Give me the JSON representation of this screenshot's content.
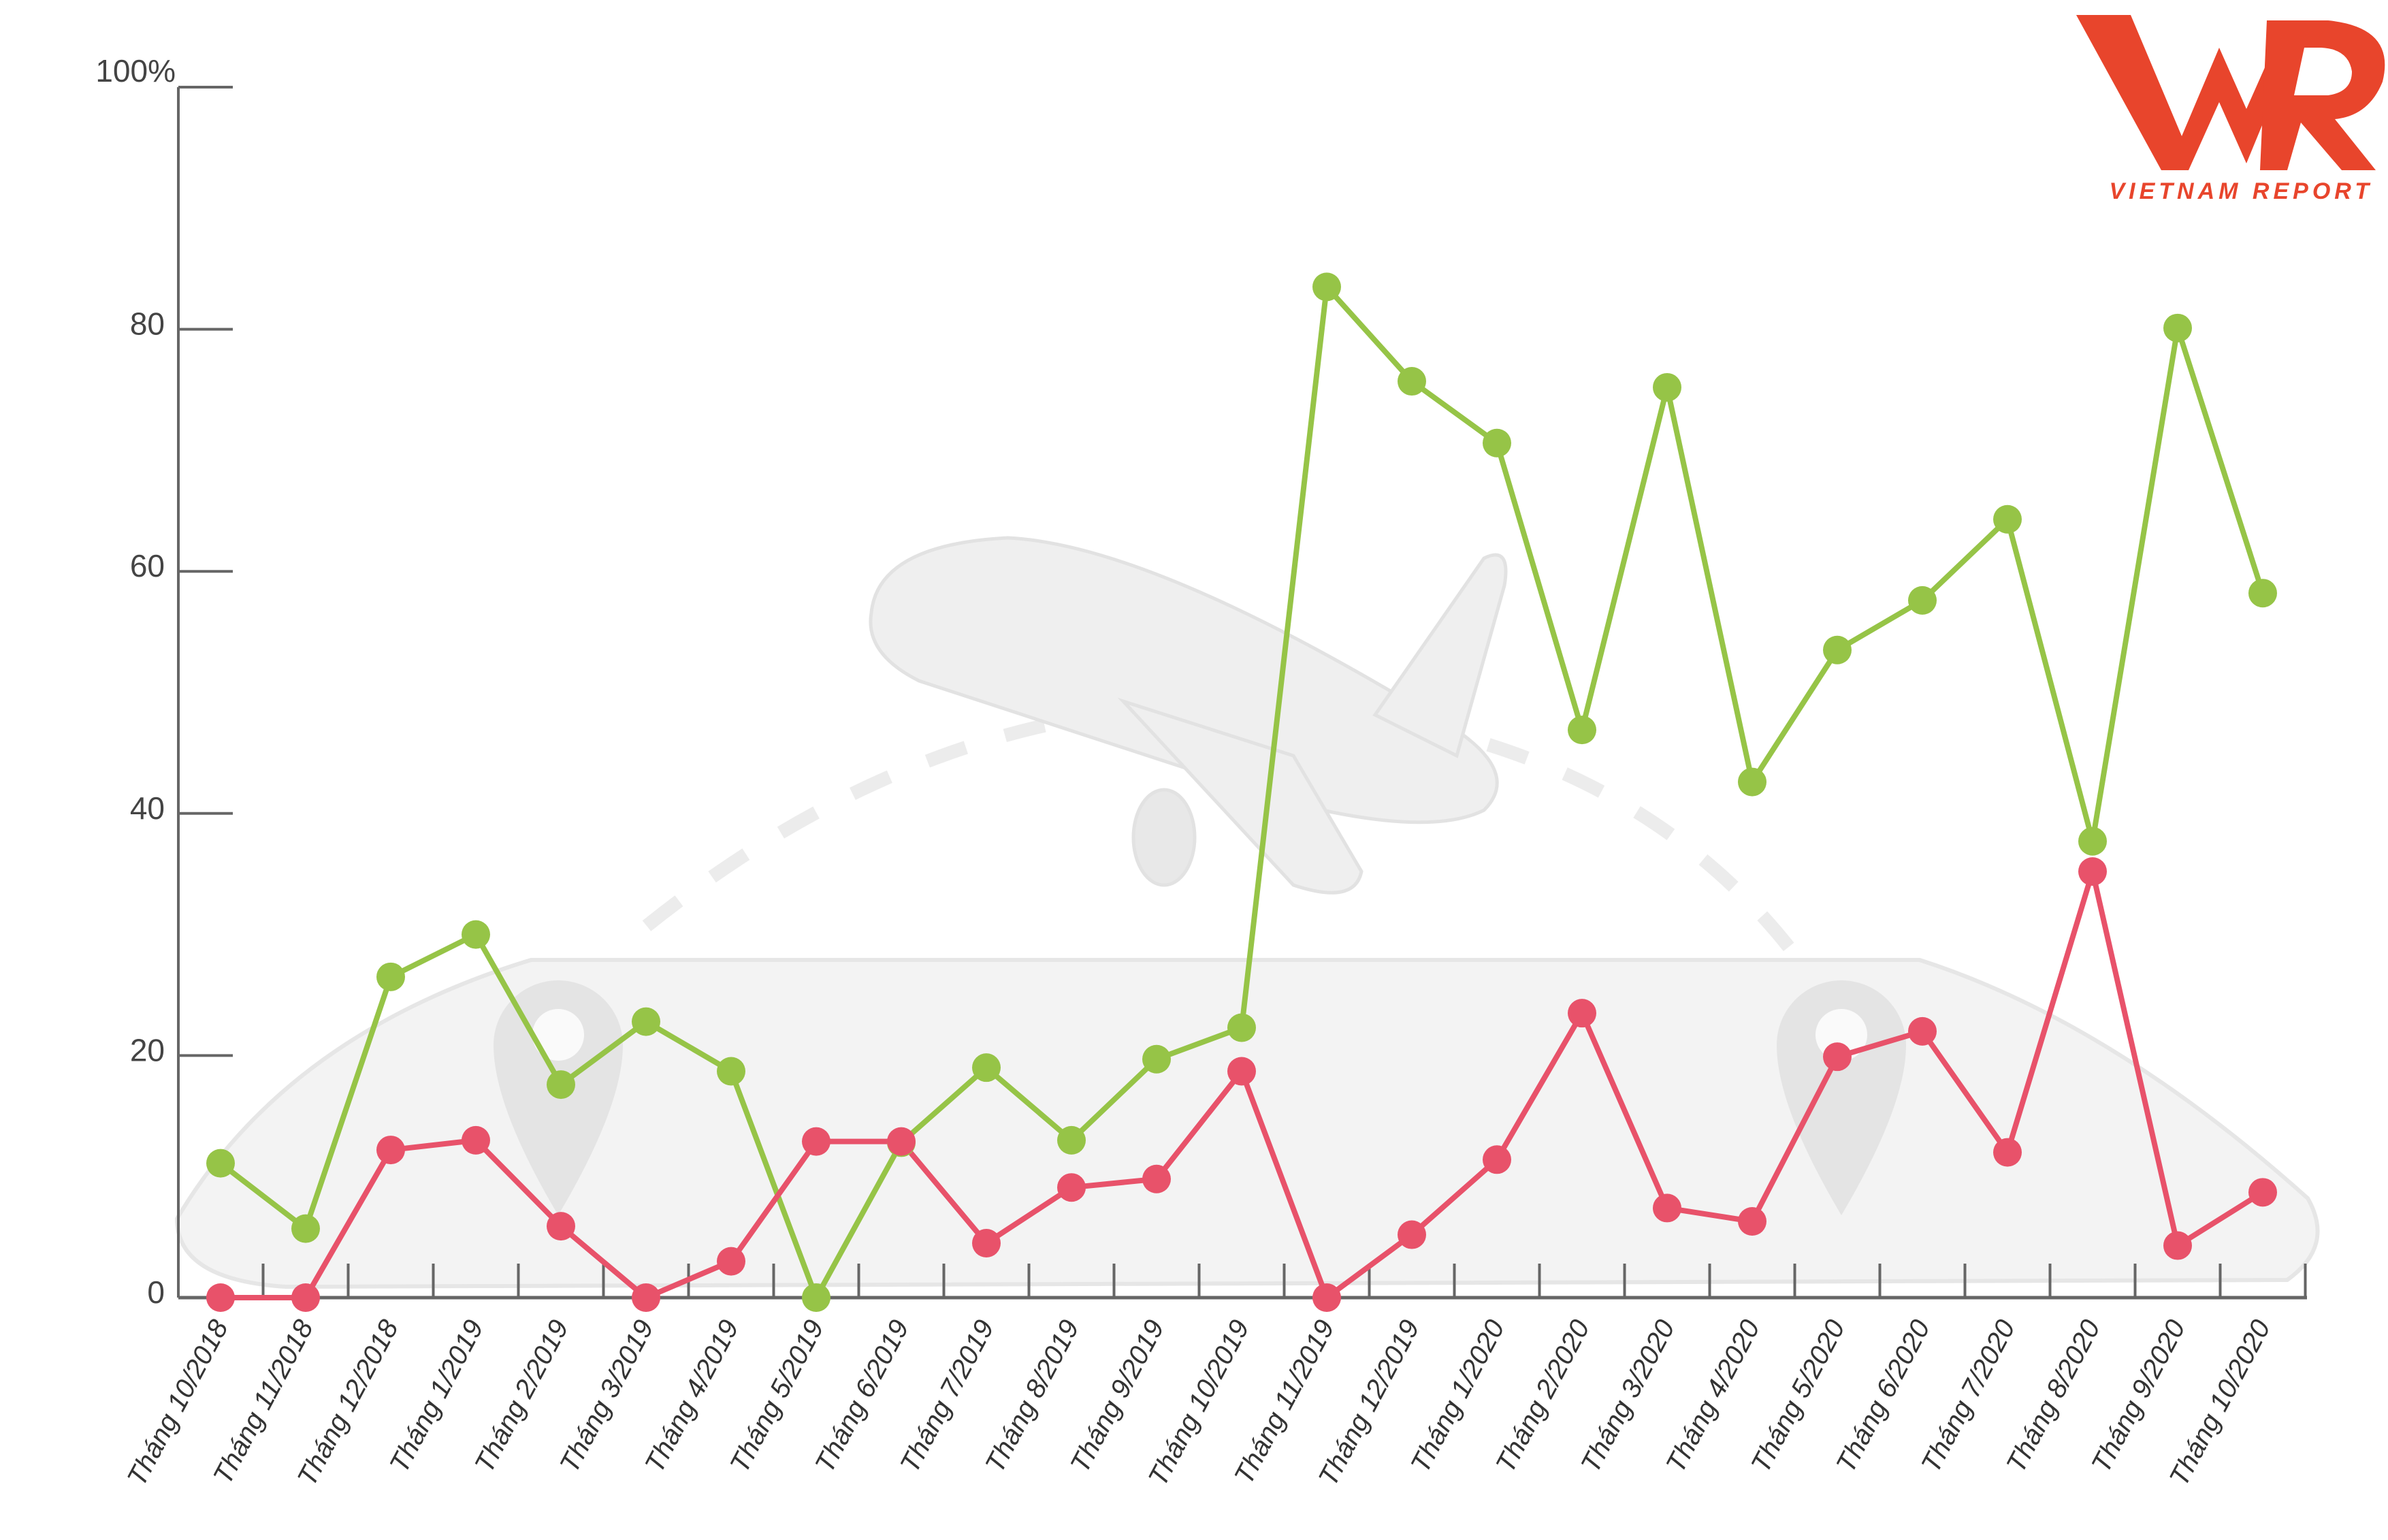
{
  "logo": {
    "brand": "VNR",
    "subtitle": "VIETNAM REPORT",
    "color": "#e8452c"
  },
  "chart_data": {
    "type": "line",
    "title": "",
    "xlabel": "",
    "ylabel": "",
    "ylim": [
      0,
      100
    ],
    "yticks": [
      0,
      20,
      40,
      60,
      80,
      100
    ],
    "ytick_labels": [
      "0",
      "20",
      "40",
      "60",
      "80",
      "100%"
    ],
    "grid": false,
    "categories": [
      "Tháng 10/2018",
      "Tháng 11/2018",
      "Tháng 12/2018",
      "Tháng 1/2019",
      "Tháng 2/2019",
      "Tháng 3/2019",
      "Tháng 4/2019",
      "Tháng 5/2019",
      "Tháng 6/2019",
      "Tháng 7/2019",
      "Tháng 8/2019",
      "Tháng 9/2019",
      "Tháng 10/2019",
      "Tháng 11/2019",
      "Tháng 12/2019",
      "Tháng 1/2020",
      "Tháng 2/2020",
      "Tháng 3/2020",
      "Tháng 4/2020",
      "Tháng 5/2020",
      "Tháng 6/2020",
      "Tháng 7/2020",
      "Tháng 8/2020",
      "Tháng 9/2020",
      "Tháng 10/2020"
    ],
    "series": [
      {
        "color": "#96c447",
        "values": [
          11.1,
          5.7,
          26.5,
          30,
          17.6,
          22.8,
          18.7,
          0,
          12.8,
          19,
          13,
          19.7,
          22.3,
          83.5,
          75.7,
          70.6,
          46.9,
          75.2,
          42.6,
          53.5,
          57.6,
          64.3,
          37.7,
          80.1,
          58.2
        ]
      },
      {
        "color": "#e8526a",
        "values": [
          0,
          0,
          12.2,
          13,
          5.9,
          0,
          3,
          12.9,
          12.9,
          4.5,
          9.1,
          9.8,
          18.7,
          0,
          5.2,
          11.4,
          23.5,
          7.4,
          6.3,
          19.9,
          22,
          12,
          35.2,
          4.3,
          8.7
        ]
      }
    ]
  }
}
